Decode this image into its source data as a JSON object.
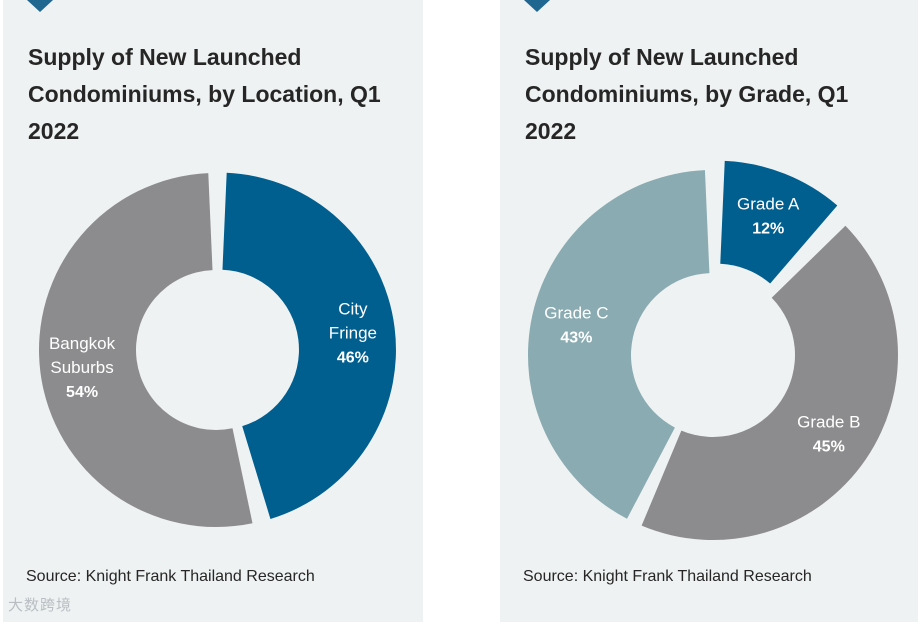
{
  "chart_data": [
    {
      "type": "pie",
      "variant": "donut",
      "title": "Supply of New Launched Condominiums, by Location, Q1 2022",
      "source": "Source: Knight Frank Thailand Research",
      "slices": [
        {
          "label_lines": [
            "City",
            "Fringe"
          ],
          "pct_text": "46%",
          "value": 46,
          "color": "#005f8f"
        },
        {
          "label_lines": [
            "Bangkok",
            "Suburbs"
          ],
          "pct_text": "54%",
          "value": 54,
          "color": "#8c8c8e"
        }
      ]
    },
    {
      "type": "pie",
      "variant": "donut",
      "title": "Supply of New Launched Condominiums, by Grade, Q1 2022",
      "source": "Source: Knight Frank Thailand Research",
      "slices": [
        {
          "label_lines": [
            "Grade A"
          ],
          "pct_text": "12%",
          "value": 12,
          "color": "#005f8f"
        },
        {
          "label_lines": [
            "Grade B"
          ],
          "pct_text": "45%",
          "value": 45,
          "color": "#8c8c8e"
        },
        {
          "label_lines": [
            "Grade C"
          ],
          "pct_text": "43%",
          "value": 43,
          "color": "#89abb1"
        }
      ]
    }
  ],
  "colors": {
    "panel_bg": "#eef2f2",
    "accent": "#1f6690"
  },
  "watermark": "大数跨境"
}
